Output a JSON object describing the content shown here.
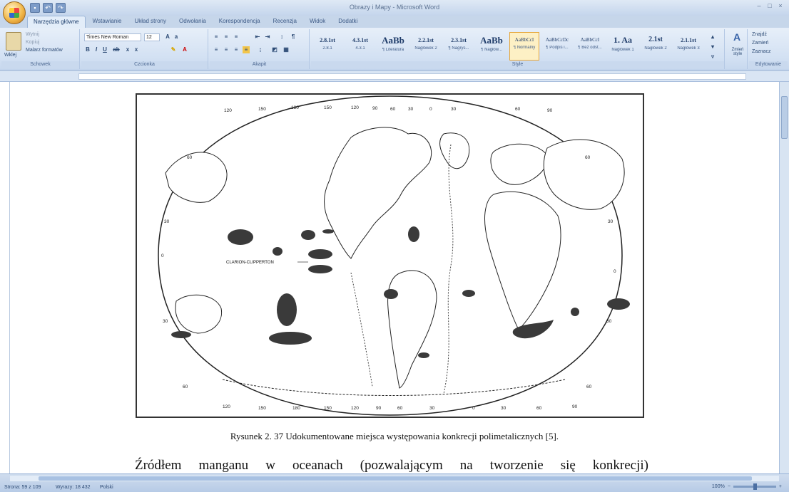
{
  "window": {
    "title": "Obrazy i Mapy - Microsoft Word"
  },
  "tabs": [
    "Narzędzia główne",
    "Wstawianie",
    "Układ strony",
    "Odwołania",
    "Korespondencja",
    "Recenzja",
    "Widok",
    "Dodatki"
  ],
  "ribbon": {
    "clipboard": {
      "paste": "Wklej",
      "cut": "Wytnij",
      "copy": "Kopiuj",
      "format_painter": "Malarz formatów",
      "label": "Schowek"
    },
    "font": {
      "name": "Times New Roman",
      "size": "12",
      "label": "Czcionka"
    },
    "paragraph": {
      "label": "Akapit"
    },
    "styles": {
      "label": "Style",
      "items": [
        {
          "sample": "2.8.1st",
          "name": "2.8.1"
        },
        {
          "sample": "4.3.1st",
          "name": "4.3.1"
        },
        {
          "sample": "AaBb",
          "name": "¶ Literatura"
        },
        {
          "sample": "2.2.1st",
          "name": "Nagłówek 2"
        },
        {
          "sample": "2.3.1st",
          "name": "¶ Nagrys..."
        },
        {
          "sample": "AaBb",
          "name": "¶ Nagłów..."
        },
        {
          "sample": "AaBbCcI",
          "name": "¶ Normalny"
        },
        {
          "sample": "AaBbCcDc",
          "name": "¶ Podpis i..."
        },
        {
          "sample": "AaBbCcI",
          "name": "¶ Bez odst..."
        },
        {
          "sample": "1. Aa",
          "name": "Nagłówek 1"
        },
        {
          "sample": "2.1st",
          "name": "Nagłówek 2"
        },
        {
          "sample": "2.1.1st",
          "name": "Nagłówek 3"
        }
      ],
      "change": "Zmień style"
    },
    "editing": {
      "find": "Znajdź",
      "replace": "Zamień",
      "select": "Zaznacz",
      "label": "Edytowanie"
    }
  },
  "document": {
    "map_labels": {
      "top": [
        "120",
        "150",
        "180",
        "150",
        "120",
        "90",
        "60",
        "30",
        "0",
        "30",
        "60",
        "90"
      ],
      "bottom": [
        "120",
        "150",
        "180",
        "150",
        "120",
        "90",
        "60",
        "30",
        "0",
        "30",
        "60",
        "90"
      ],
      "left": [
        "60",
        "30",
        "0",
        "30",
        "60"
      ],
      "right": [
        "60",
        "30",
        "0",
        "30",
        "60"
      ],
      "clarion": "CLARION-CLIPPERTON"
    },
    "caption": "Rysunek 2. 37 Udokumentowane miejsca występowania konkrecji polimetalicznych [5].",
    "body_words": [
      "Źródłem",
      "manganu",
      "w",
      "oceanach",
      "(pozwalającym",
      "na",
      "tworzenie",
      "się",
      "konkrecji)"
    ]
  },
  "statusbar": {
    "page": "Strona: 59 z 109",
    "words": "Wyrazy: 18 432",
    "language": "Polski",
    "zoom": "100%"
  }
}
